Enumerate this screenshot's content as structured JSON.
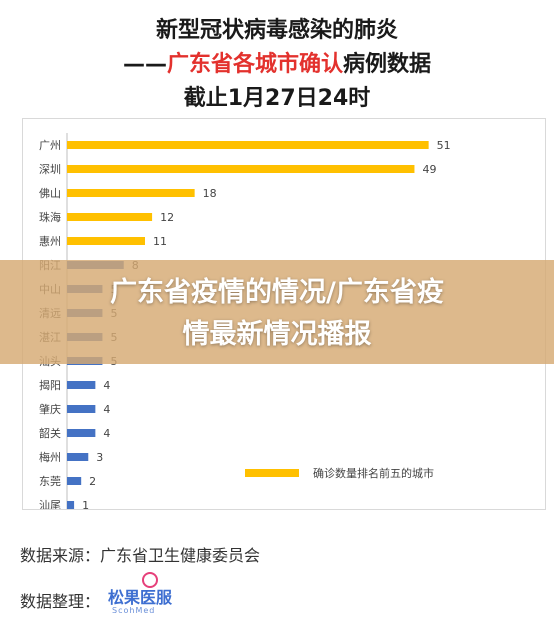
{
  "title": {
    "line1": "新型冠状病毒感染的肺炎",
    "line2_prefix": "——",
    "line2_red": "广东省各城市确认",
    "line2_suffix": "病例数据",
    "line3": "截止1月27日24时"
  },
  "overlay": {
    "line1": "广东省疫情的情况/广东省疫",
    "line2": "情最新情况播报"
  },
  "footer": {
    "source": "数据来源：广东省卫生健康委员会",
    "arranged_label": "数据整理：",
    "logo_text": "松果医服",
    "logo_sub": "ScohMed"
  },
  "colors": {
    "top5": "#ffc000",
    "other": "#4472c4",
    "title_red": "#e3312d"
  },
  "chart_data": {
    "type": "bar",
    "orientation": "horizontal",
    "categories": [
      "广州",
      "深圳",
      "佛山",
      "珠海",
      "惠州",
      "阳江",
      "中山",
      "清远",
      "湛江",
      "汕头",
      "揭阳",
      "肇庆",
      "韶关",
      "梅州",
      "东莞",
      "汕尾"
    ],
    "values": [
      51,
      49,
      18,
      12,
      11,
      8,
      5,
      5,
      5,
      5,
      4,
      4,
      4,
      3,
      2,
      1
    ],
    "highlight_top": 5,
    "legend": {
      "label": "确诊数量排名前五的城市",
      "position": "bottom-right"
    },
    "xlim": [
      0,
      55
    ],
    "grid": false
  }
}
